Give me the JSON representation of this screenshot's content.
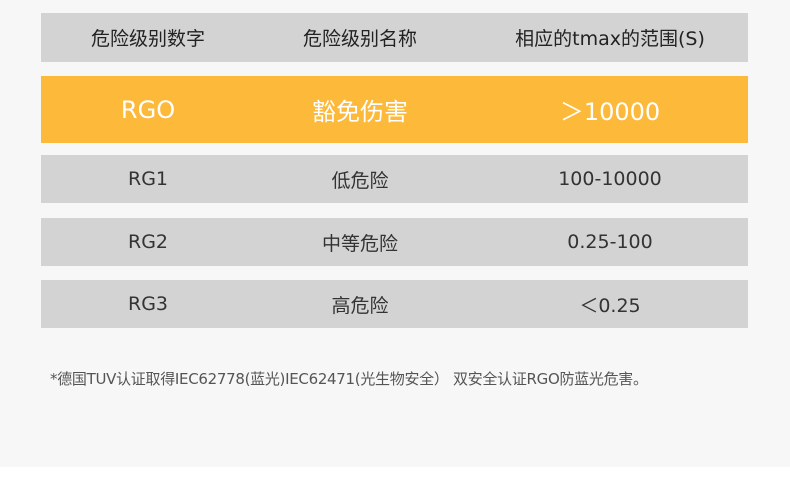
{
  "table": {
    "headers": [
      "危险级别数字",
      "危险级别名称",
      "相应的tmax的范围(S)"
    ],
    "rows": [
      [
        "RGO",
        "豁免伤害",
        "＞10000"
      ],
      [
        "RG1",
        "低危险",
        "100-10000"
      ],
      [
        "RG2",
        "中等危险",
        "0.25-100"
      ],
      [
        "RG3",
        "高危险",
        "＜0.25"
      ]
    ],
    "highlight_color": "#fdb93a",
    "row_color": "#d3d3d3"
  },
  "footnote": "*德国TUV认证取得IEC62778(蓝光)IEC62471(光生物安全） 双安全认证RGO防蓝光危害。"
}
